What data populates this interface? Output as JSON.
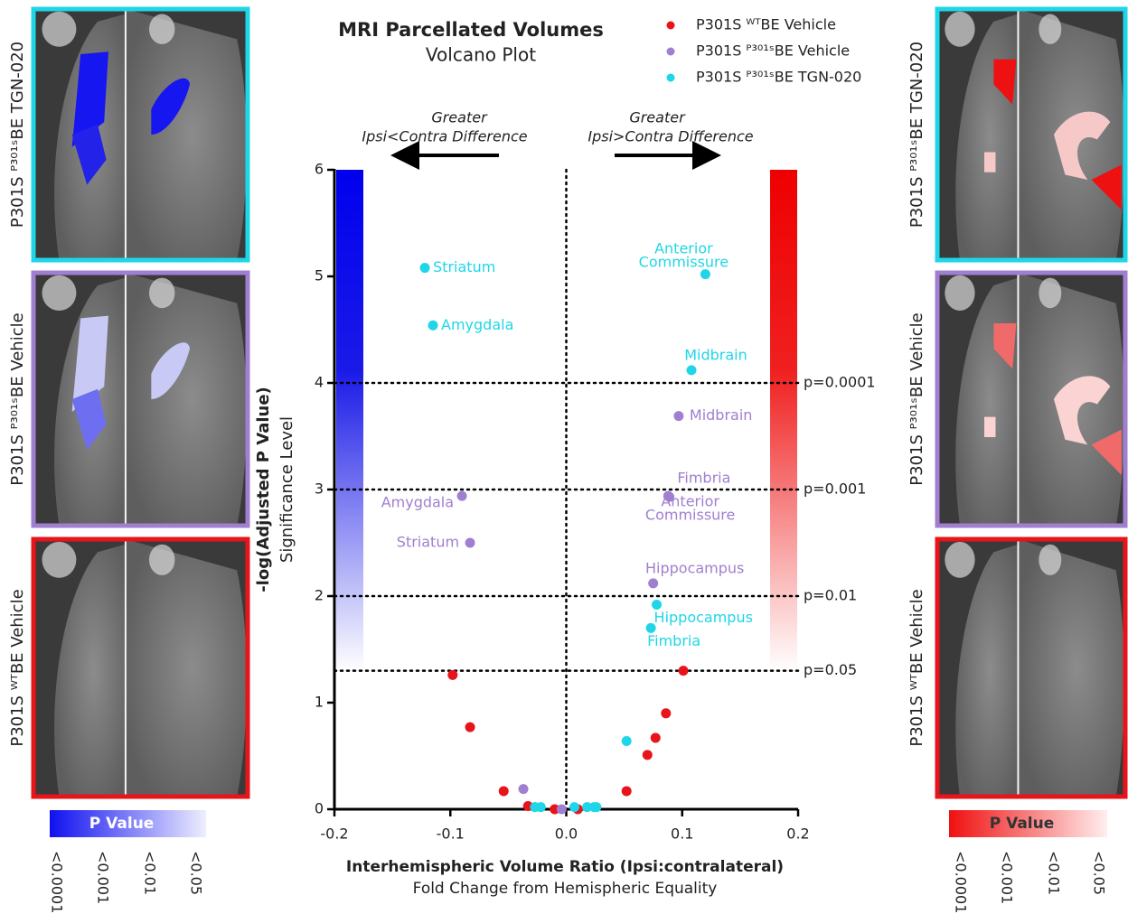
{
  "chart_data": {
    "type": "scatter",
    "title": "MRI Parcellated Volumes",
    "subtitle": "Volcano Plot",
    "x_label": "Interhemispheric Volume Ratio (Ipsi:contralateral)",
    "x_sublabel": "Fold Change from Hemispheric Equality",
    "y_label": "-log(Adjusted P Value)",
    "y_sublabel": "Significance Level",
    "annotations": [
      {
        "lines": [
          "Greater",
          "Ipsi<Contra Difference"
        ]
      },
      {
        "lines": [
          "Greater",
          "Ipsi>Contra Difference"
        ]
      }
    ],
    "xlim": [
      -0.2,
      0.2
    ],
    "xticks": [
      -0.2,
      -0.1,
      {
        "value": 0,
        "label": "0.0"
      },
      0.1,
      0.2
    ],
    "ylim": [
      0,
      6
    ],
    "yticks": [
      0,
      1,
      2,
      3,
      4,
      5,
      6
    ],
    "reference_lines": [
      {
        "value": 4,
        "label": "p=0.0001"
      },
      {
        "value": 3,
        "label": "p=0.001"
      },
      {
        "value": 2,
        "label": "p=0.01"
      },
      {
        "value": 1.3,
        "label": "p=0.05"
      }
    ],
    "x_reference": 0,
    "series": [
      {
        "name": "P301S ᵂᵀBE Vehicle",
        "color": "#e8141a",
        "x": [
          -0.098,
          -0.083,
          -0.054,
          -0.033,
          -0.01,
          0.01,
          0.052,
          0.07,
          0.077,
          0.086,
          0.101
        ],
        "values": [
          1.26,
          0.77,
          0.17,
          0.03,
          0.0,
          0.0,
          0.17,
          0.51,
          0.67,
          0.9,
          1.3
        ],
        "labels": [
          null,
          null,
          null,
          null,
          null,
          null,
          null,
          null,
          null,
          null,
          null
        ]
      },
      {
        "name": "P301S ᴾ³⁰¹ˢBE Vehicle",
        "color": "#a07fd0",
        "x": [
          -0.09,
          -0.083,
          0.097,
          0.088,
          0.089,
          0.075,
          -0.037,
          -0.004
        ],
        "values": [
          2.94,
          2.5,
          3.69,
          2.94,
          2.93,
          2.12,
          0.19,
          0.0
        ],
        "labels": [
          "Amygdala",
          "Striatum",
          "Midbrain",
          "Fimbria",
          "Anterior Commissure",
          "Hippocampus",
          null,
          null
        ]
      },
      {
        "name": "P301S ᴾ³⁰¹ˢBE TGN-020",
        "color": "#1fd6e8",
        "x": [
          -0.122,
          -0.115,
          0.12,
          0.108,
          0.078,
          0.073,
          0.052,
          -0.027,
          -0.022,
          0.007,
          0.018,
          0.024,
          0.026
        ],
        "values": [
          5.08,
          4.54,
          5.02,
          4.12,
          1.92,
          1.7,
          0.64,
          0.02,
          0.02,
          0.02,
          0.02,
          0.02,
          0.02
        ],
        "labels": [
          "Striatum",
          "Amygdala",
          "Anterior Commissure",
          "Midbrain",
          "Hippocampus",
          "Fimbria",
          null,
          null,
          null,
          null,
          null,
          null,
          null
        ]
      }
    ]
  },
  "colorbars": [
    {
      "title": "P Value",
      "ticks": [
        "<0.0001",
        "<0.001",
        "<0.01",
        "<0.05"
      ]
    },
    {
      "title": "P Value",
      "ticks": [
        "<0.0001",
        "<0.001",
        "<0.01",
        "<0.05"
      ]
    }
  ]
}
